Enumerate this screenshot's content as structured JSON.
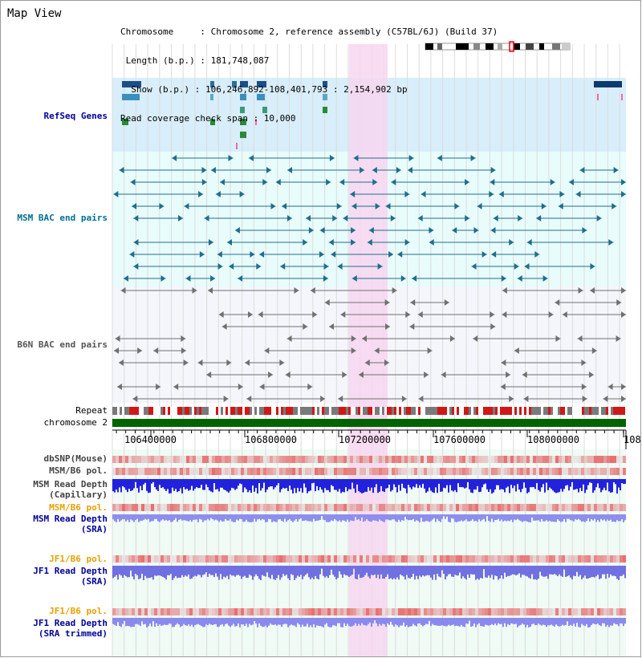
{
  "view_title": "Map View",
  "info": {
    "chromosome": "Chromosome     : Chromosome 2, reference assembly (C57BL/6J) (Build 37)",
    "length": " Length (b.p.) : 181,748,087",
    "show": "  Show (b.p.) : 106,246,892-108,401,793 : 2,154,902 bp",
    "coverage": "Read coverage check span : 10,000"
  },
  "tracks": {
    "refseq": "RefSeq Genes",
    "msm_bac": "MSM BAC end pairs",
    "b6n_bac": "B6N BAC end pairs",
    "repeat": "Repeat",
    "chromosome": "chromosome 2",
    "dbsnp": "dbSNP(Mouse)",
    "msm_b6_pol": "MSM/B6 pol.",
    "msm_read_depth_cap_1": "MSM Read Depth",
    "msm_read_depth_cap_2": "(Capillary)",
    "msm_b6_pol_sra": "MSM/B6 pol.",
    "msm_read_depth_sra_1": "MSM Read Depth",
    "msm_read_depth_sra_2": "(SRA)",
    "jf1_b6_pol": "JF1/B6 pol.",
    "jf1_read_depth_1": "JF1 Read Depth",
    "jf1_read_depth_2": "(SRA)",
    "jf1_b6_pol_trim": "JF1/B6 pol.",
    "jf1_read_depth_trim_1": "JF1 Read Depth",
    "jf1_read_depth_trim_2": "(SRA trimmed)"
  },
  "axis": {
    "ticks": [
      "106400000",
      "106800000",
      "107200000",
      "107600000",
      "108000000",
      "108"
    ]
  },
  "colors": {
    "highlight": "#f7d6f0",
    "refseq_bg": "#d8eefa",
    "bac_bg": "#e8fcfb",
    "msm_bac_line": "#1f6e8c",
    "b6n_bac_line": "#707070",
    "chromosome_bar": "#006400",
    "pol_red": "#e84b4b",
    "depth_blue": "#2222dd",
    "depth_light": "#8e8eee",
    "label_blue": "#000099",
    "label_orange": "#e8a000",
    "label_teal": "#006f8f"
  }
}
